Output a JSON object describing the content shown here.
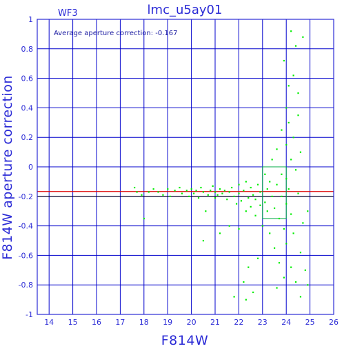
{
  "chart_data": {
    "type": "scatter",
    "title": "lmc_u5ay01",
    "panel_label": "WF3",
    "xlabel": "F814W",
    "ylabel": "F814W aperture correction",
    "annotation": "Average aperture correction: -0.167",
    "xlim": [
      13.5,
      26
    ],
    "ylim": [
      -1,
      1
    ],
    "x_ticks": [
      14,
      15,
      16,
      17,
      18,
      19,
      20,
      21,
      22,
      23,
      24,
      25,
      26
    ],
    "y_ticks": [
      -1,
      -0.8,
      -0.6,
      -0.4,
      -0.2,
      0,
      0.2,
      0.4,
      0.6,
      0.8,
      1
    ],
    "x_tick_labels": [
      "14",
      "15",
      "16",
      "17",
      "18",
      "19",
      "20",
      "21",
      "22",
      "23",
      "24",
      "25",
      "26"
    ],
    "y_tick_labels": [
      "-1",
      "-0.8",
      "-0.6",
      "-0.4",
      "-0.2",
      "0",
      "0.2",
      "0.4",
      "0.6",
      "0.8",
      "1"
    ],
    "average_line": -0.167,
    "reference_line": -0.2,
    "grid": true,
    "selection_box": {
      "x": [
        23,
        24
      ],
      "y": [
        -0.35,
        0
      ]
    },
    "point_color": "#00ee00",
    "series": [
      {
        "values": [
          [
            17.6,
            -0.14
          ],
          [
            17.7,
            -0.17
          ],
          [
            17.9,
            -0.19
          ],
          [
            18.0,
            -0.35
          ],
          [
            18.2,
            -0.17
          ],
          [
            18.4,
            -0.15
          ],
          [
            18.6,
            -0.17
          ],
          [
            18.8,
            -0.19
          ],
          [
            19.0,
            -0.15
          ],
          [
            19.1,
            -0.2
          ],
          [
            19.3,
            -0.16
          ],
          [
            19.5,
            -0.14
          ],
          [
            19.6,
            -0.18
          ],
          [
            19.8,
            -0.16
          ],
          [
            19.9,
            -0.2
          ],
          [
            20.0,
            -0.15
          ],
          [
            20.1,
            -0.18
          ],
          [
            20.2,
            -0.16
          ],
          [
            20.3,
            -0.21
          ],
          [
            20.4,
            -0.14
          ],
          [
            20.5,
            -0.17
          ],
          [
            20.6,
            -0.3
          ],
          [
            20.7,
            -0.19
          ],
          [
            20.8,
            -0.16
          ],
          [
            20.9,
            -0.13
          ],
          [
            21.0,
            -0.17
          ],
          [
            21.0,
            -0.21
          ],
          [
            21.1,
            -0.19
          ],
          [
            21.2,
            -0.15
          ],
          [
            21.3,
            -0.18
          ],
          [
            21.4,
            -0.16
          ],
          [
            21.5,
            -0.22
          ],
          [
            21.6,
            -0.17
          ],
          [
            21.7,
            -0.14
          ],
          [
            21.8,
            -0.2
          ],
          [
            21.9,
            -0.25
          ],
          [
            22.0,
            -0.18
          ],
          [
            22.0,
            -0.12
          ],
          [
            22.1,
            -0.23
          ],
          [
            22.2,
            -0.16
          ],
          [
            22.3,
            -0.3
          ],
          [
            22.3,
            -0.1
          ],
          [
            22.4,
            -0.21
          ],
          [
            22.5,
            -0.27
          ],
          [
            22.5,
            -0.14
          ],
          [
            22.6,
            -0.19
          ],
          [
            22.7,
            -0.33
          ],
          [
            22.7,
            -0.22
          ],
          [
            22.8,
            -0.12
          ],
          [
            22.9,
            -0.26
          ],
          [
            22.9,
            -0.17
          ],
          [
            21.2,
            -0.45
          ],
          [
            20.5,
            -0.5
          ],
          [
            22.0,
            -0.42
          ],
          [
            21.6,
            -0.4
          ],
          [
            22.2,
            -0.78
          ],
          [
            22.6,
            -0.85
          ],
          [
            22.4,
            -0.68
          ],
          [
            21.8,
            -0.88
          ],
          [
            22.8,
            -0.62
          ],
          [
            22.3,
            -0.9
          ],
          [
            23.0,
            -0.4
          ],
          [
            23.1,
            -0.05
          ],
          [
            23.1,
            -0.24
          ],
          [
            23.2,
            -0.15
          ],
          [
            23.2,
            -0.3
          ],
          [
            23.3,
            -0.1
          ],
          [
            23.3,
            -0.45
          ],
          [
            23.4,
            -0.2
          ],
          [
            23.4,
            0.05
          ],
          [
            23.5,
            -0.28
          ],
          [
            23.5,
            -0.55
          ],
          [
            23.6,
            -0.12
          ],
          [
            23.6,
            0.12
          ],
          [
            23.7,
            -0.35
          ],
          [
            23.7,
            -0.65
          ],
          [
            23.8,
            0.25
          ],
          [
            23.8,
            -0.05
          ],
          [
            23.8,
            -0.2
          ],
          [
            23.9,
            0.72
          ],
          [
            23.9,
            -0.42
          ],
          [
            23.9,
            -0.75
          ],
          [
            24.0,
            0.4
          ],
          [
            24.0,
            0.15
          ],
          [
            24.0,
            -0.08
          ],
          [
            24.0,
            -0.25
          ],
          [
            24.0,
            -0.52
          ],
          [
            24.1,
            0.55
          ],
          [
            24.1,
            0.3
          ],
          [
            24.1,
            -0.15
          ],
          [
            24.2,
            0.05
          ],
          [
            24.2,
            -0.32
          ],
          [
            24.2,
            -0.68
          ],
          [
            24.3,
            0.62
          ],
          [
            24.3,
            0.2
          ],
          [
            24.3,
            -0.45
          ],
          [
            24.4,
            0.82
          ],
          [
            24.4,
            -0.02
          ],
          [
            24.4,
            -0.78
          ],
          [
            24.5,
            0.5
          ],
          [
            24.5,
            0.35
          ],
          [
            24.5,
            -0.18
          ],
          [
            24.6,
            0.1
          ],
          [
            24.6,
            -0.58
          ],
          [
            24.6,
            -0.88
          ],
          [
            24.7,
            0.88
          ],
          [
            24.7,
            -0.38
          ],
          [
            24.8,
            -0.7
          ],
          [
            24.2,
            0.92
          ],
          [
            23.6,
            -0.82
          ],
          [
            24.9,
            -0.3
          ],
          [
            24.9,
            -0.8
          ]
        ]
      }
    ]
  },
  "colors": {
    "axis_text": "#2b2bd6",
    "frame": "#2b2bd6",
    "grid": "#0000cc",
    "average_line": "#dd0000",
    "reference_line": "#000000",
    "points": "#00ee00",
    "selection_box": "#00aa44"
  }
}
